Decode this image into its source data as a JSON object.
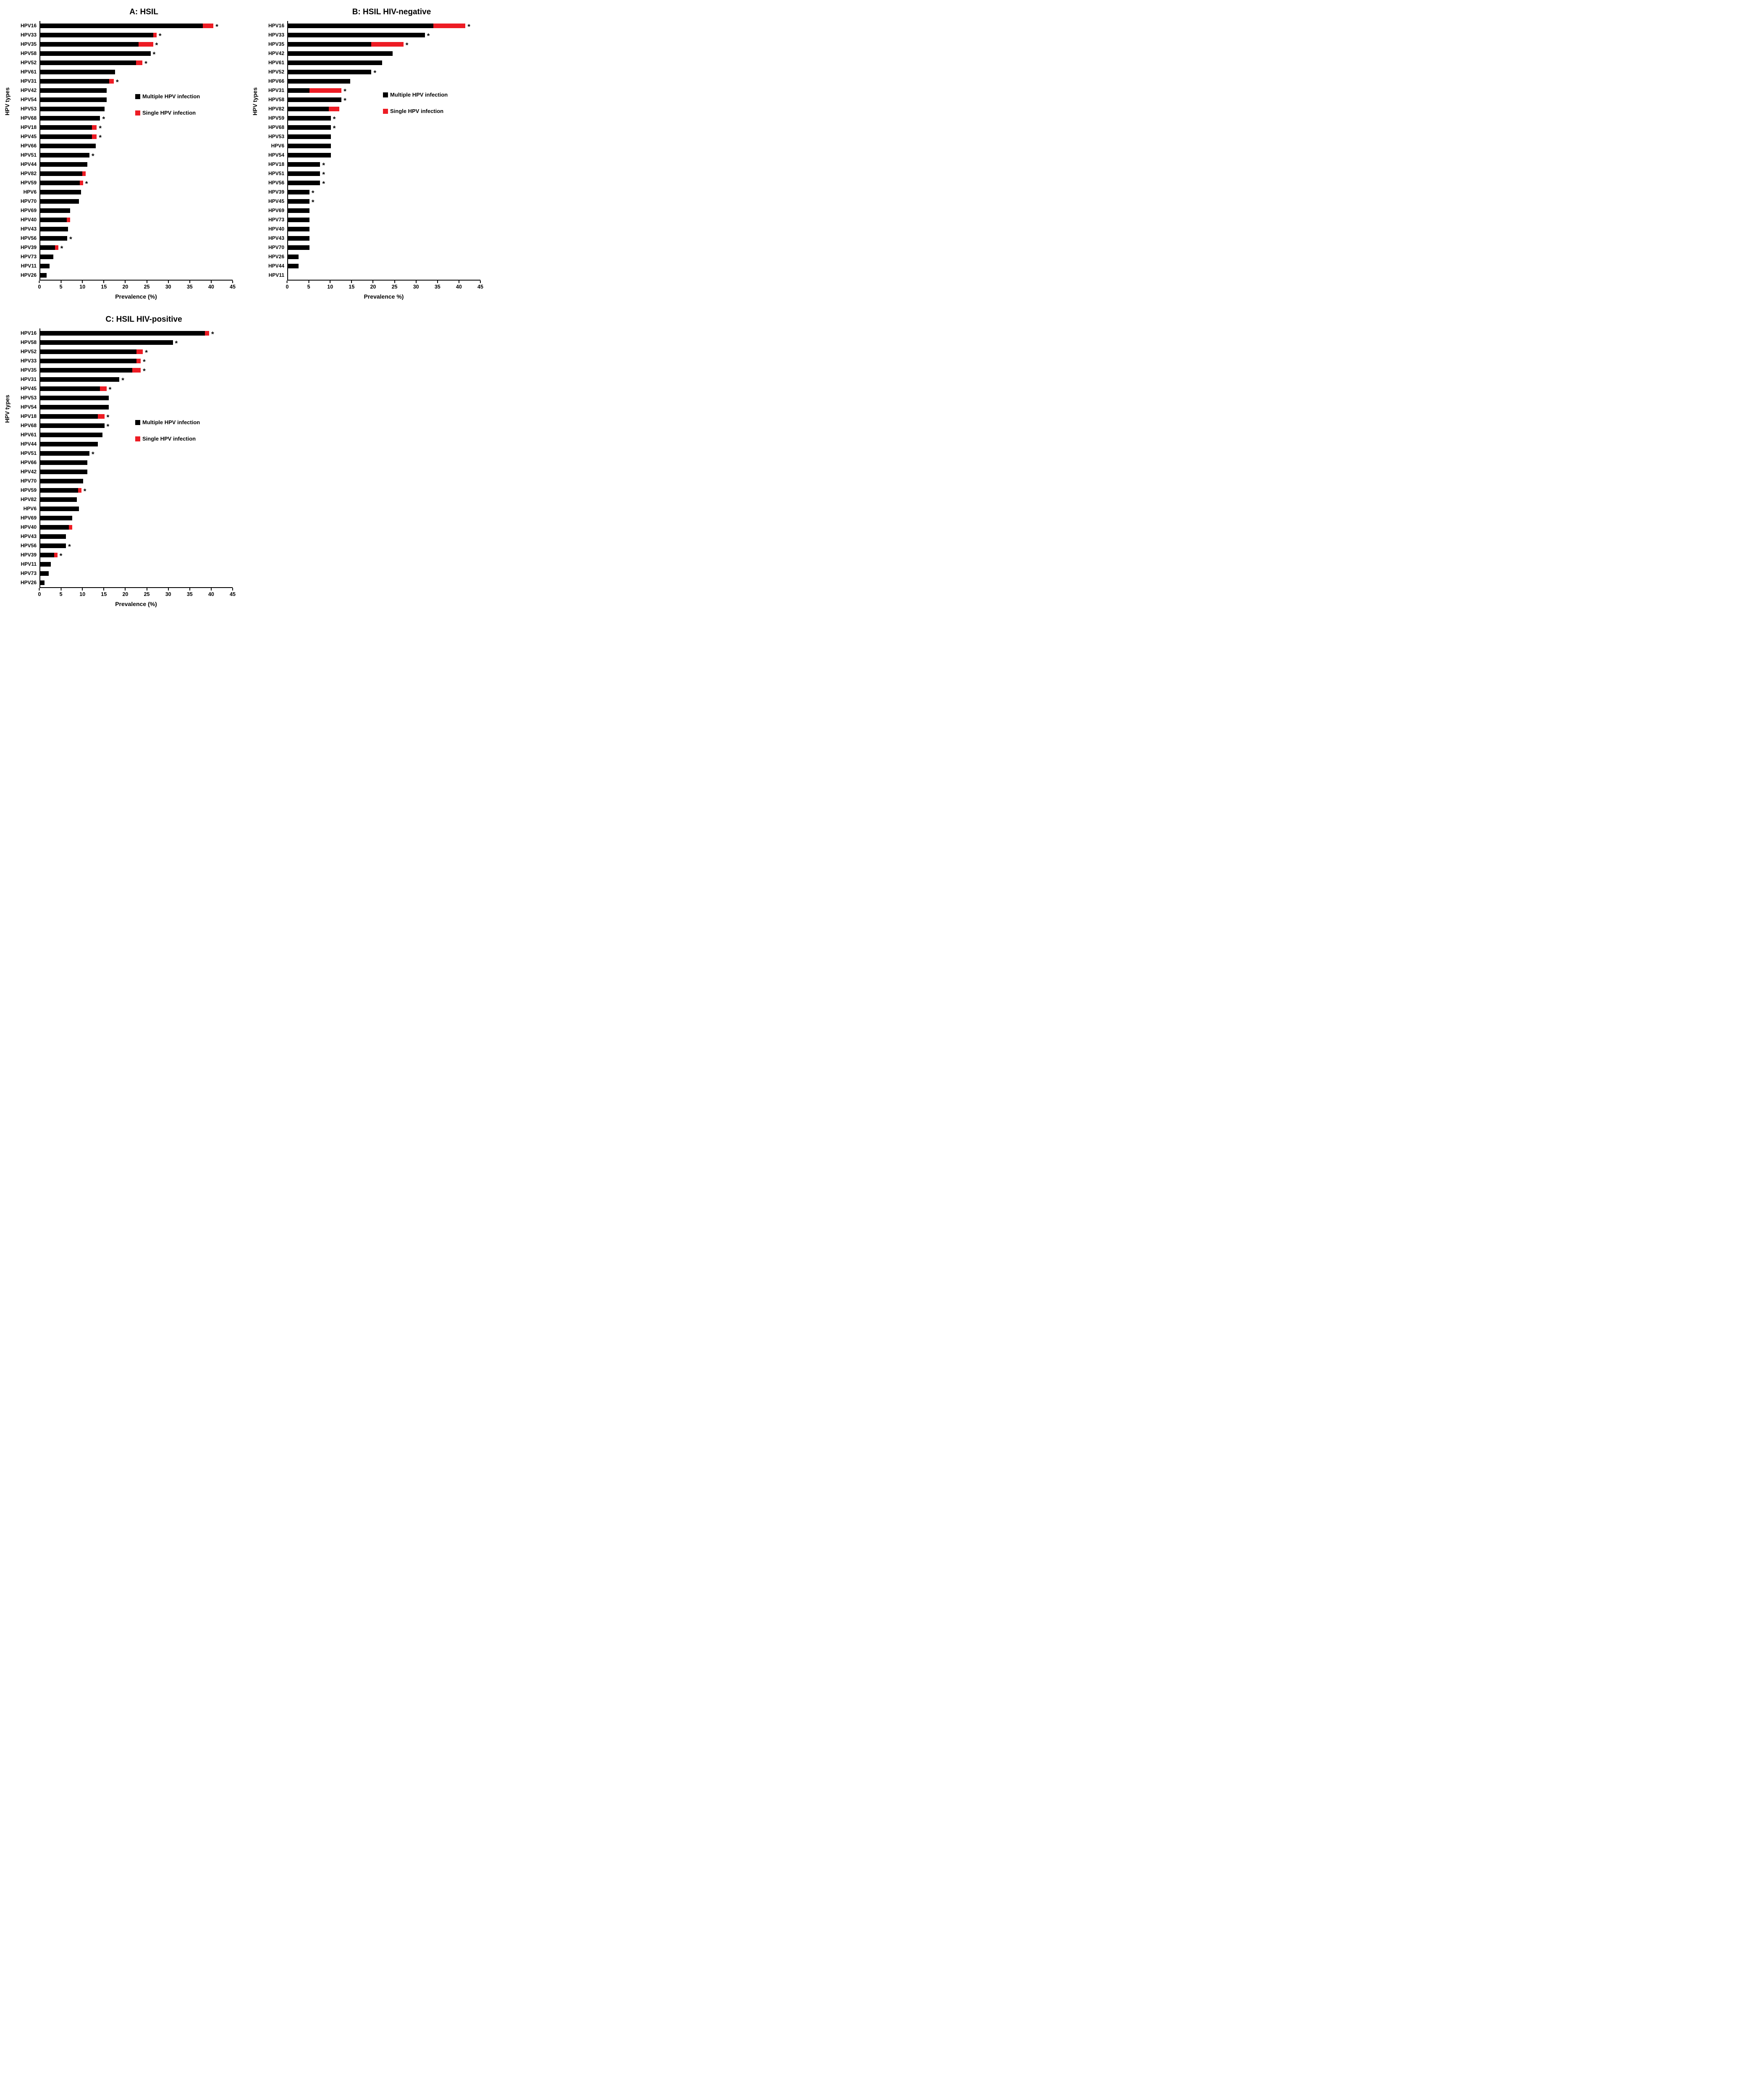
{
  "colors": {
    "multiple": "#000000",
    "single": "#ed1c24",
    "axis": "#000000"
  },
  "significance_marker": "*",
  "legend": {
    "multiple_label": "Multiple HPV infection",
    "single_label": "Single HPV infection"
  },
  "chart_data": [
    {
      "type": "bar",
      "orientation": "horizontal",
      "title": "A: HSIL",
      "xlabel": "Prevalence (%)",
      "ylabel": "HPV types",
      "xlim": [
        0,
        45
      ],
      "xticks": [
        0,
        5,
        10,
        15,
        20,
        25,
        30,
        35,
        40,
        45
      ],
      "series": [
        "Multiple HPV infection",
        "Single HPV infection"
      ],
      "bars": [
        {
          "label": "HPV16",
          "multiple": 38.0,
          "single": 2.5,
          "star": true
        },
        {
          "label": "HPV33",
          "multiple": 26.4,
          "single": 0.8,
          "star": true
        },
        {
          "label": "HPV35",
          "multiple": 23.0,
          "single": 3.4,
          "star": true
        },
        {
          "label": "HPV58",
          "multiple": 25.8,
          "single": 0,
          "star": true
        },
        {
          "label": "HPV52",
          "multiple": 22.4,
          "single": 1.5,
          "star": true
        },
        {
          "label": "HPV61",
          "multiple": 17.5,
          "single": 0,
          "star": false
        },
        {
          "label": "HPV31",
          "multiple": 16.1,
          "single": 1.1,
          "star": true
        },
        {
          "label": "HPV42",
          "multiple": 15.5,
          "single": 0,
          "star": false
        },
        {
          "label": "HPV54",
          "multiple": 15.5,
          "single": 0,
          "star": false
        },
        {
          "label": "HPV53",
          "multiple": 15.0,
          "single": 0,
          "star": false
        },
        {
          "label": "HPV68",
          "multiple": 14.0,
          "single": 0,
          "star": true
        },
        {
          "label": "HPV18",
          "multiple": 12.1,
          "single": 1.1,
          "star": true
        },
        {
          "label": "HPV45",
          "multiple": 12.1,
          "single": 1.1,
          "star": true
        },
        {
          "label": "HPV66",
          "multiple": 13.0,
          "single": 0,
          "star": false
        },
        {
          "label": "HPV51",
          "multiple": 11.5,
          "single": 0,
          "star": true
        },
        {
          "label": "HPV44",
          "multiple": 11.0,
          "single": 0,
          "star": false
        },
        {
          "label": "HPV82",
          "multiple": 9.8,
          "single": 0.8,
          "star": false
        },
        {
          "label": "HPV59",
          "multiple": 9.2,
          "single": 0.8,
          "star": true
        },
        {
          "label": "HPV6",
          "multiple": 9.5,
          "single": 0,
          "star": false
        },
        {
          "label": "HPV70",
          "multiple": 9.0,
          "single": 0,
          "star": false
        },
        {
          "label": "HPV69",
          "multiple": 7.0,
          "single": 0,
          "star": false
        },
        {
          "label": "HPV40",
          "multiple": 6.2,
          "single": 0.8,
          "star": false
        },
        {
          "label": "HPV43",
          "multiple": 6.5,
          "single": 0,
          "star": false
        },
        {
          "label": "HPV56",
          "multiple": 6.3,
          "single": 0,
          "star": true
        },
        {
          "label": "HPV39",
          "multiple": 3.4,
          "single": 0.8,
          "star": true
        },
        {
          "label": "HPV73",
          "multiple": 3.0,
          "single": 0,
          "star": false
        },
        {
          "label": "HPV11",
          "multiple": 2.2,
          "single": 0,
          "star": false
        },
        {
          "label": "HPV26",
          "multiple": 1.5,
          "single": 0,
          "star": false
        }
      ]
    },
    {
      "type": "bar",
      "orientation": "horizontal",
      "title": "B: HSIL HIV-negative",
      "xlabel": "Prevalence %)",
      "ylabel": "HPV types",
      "xlim": [
        0,
        45
      ],
      "xticks": [
        0,
        5,
        10,
        15,
        20,
        25,
        30,
        35,
        40,
        45
      ],
      "series": [
        "Multiple HPV infection",
        "Single HPV infection"
      ],
      "bars": [
        {
          "label": "HPV16",
          "multiple": 34.0,
          "single": 7.5,
          "star": true
        },
        {
          "label": "HPV33",
          "multiple": 32.0,
          "single": 0,
          "star": true
        },
        {
          "label": "HPV35",
          "multiple": 19.5,
          "single": 7.5,
          "star": true
        },
        {
          "label": "HPV42",
          "multiple": 24.5,
          "single": 0,
          "star": false
        },
        {
          "label": "HPV61",
          "multiple": 22.0,
          "single": 0,
          "star": false
        },
        {
          "label": "HPV52",
          "multiple": 19.5,
          "single": 0,
          "star": true
        },
        {
          "label": "HPV66",
          "multiple": 14.5,
          "single": 0,
          "star": false
        },
        {
          "label": "HPV31",
          "multiple": 5.0,
          "single": 7.5,
          "star": true
        },
        {
          "label": "HPV58",
          "multiple": 12.5,
          "single": 0,
          "star": true
        },
        {
          "label": "HPV82",
          "multiple": 9.5,
          "single": 2.5,
          "star": false
        },
        {
          "label": "HPV59",
          "multiple": 10.0,
          "single": 0,
          "star": true
        },
        {
          "label": "HPV68",
          "multiple": 10.0,
          "single": 0,
          "star": true
        },
        {
          "label": "HPV53",
          "multiple": 10.0,
          "single": 0,
          "star": false
        },
        {
          "label": "HPV6",
          "multiple": 10.0,
          "single": 0,
          "star": false
        },
        {
          "label": "HPV54",
          "multiple": 10.0,
          "single": 0,
          "star": false
        },
        {
          "label": "HPV18",
          "multiple": 7.5,
          "single": 0,
          "star": true
        },
        {
          "label": "HPV51",
          "multiple": 7.5,
          "single": 0,
          "star": true
        },
        {
          "label": "HPV56",
          "multiple": 7.5,
          "single": 0,
          "star": true
        },
        {
          "label": "HPV39",
          "multiple": 5.0,
          "single": 0,
          "star": true
        },
        {
          "label": "HPV45",
          "multiple": 5.0,
          "single": 0,
          "star": true
        },
        {
          "label": "HPV69",
          "multiple": 5.0,
          "single": 0,
          "star": false
        },
        {
          "label": "HPV73",
          "multiple": 5.0,
          "single": 0,
          "star": false
        },
        {
          "label": "HPV40",
          "multiple": 5.0,
          "single": 0,
          "star": false
        },
        {
          "label": "HPV43",
          "multiple": 5.0,
          "single": 0,
          "star": false
        },
        {
          "label": "HPV70",
          "multiple": 5.0,
          "single": 0,
          "star": false
        },
        {
          "label": "HPV26",
          "multiple": 2.5,
          "single": 0,
          "star": false
        },
        {
          "label": "HPV44",
          "multiple": 2.5,
          "single": 0,
          "star": false
        },
        {
          "label": "HPV11",
          "multiple": 0,
          "single": 0,
          "star": false
        }
      ]
    },
    {
      "type": "bar",
      "orientation": "horizontal",
      "title": "C: HSIL HIV-positive",
      "xlabel": "Prevalence (%)",
      "ylabel": "HPV types",
      "xlim": [
        0,
        45
      ],
      "xticks": [
        0,
        5,
        10,
        15,
        20,
        25,
        30,
        35,
        40,
        45
      ],
      "series": [
        "Multiple HPV infection",
        "Single HPV infection"
      ],
      "bars": [
        {
          "label": "HPV16",
          "multiple": 38.5,
          "single": 1.0,
          "star": true
        },
        {
          "label": "HPV58",
          "multiple": 31.0,
          "single": 0,
          "star": true
        },
        {
          "label": "HPV52",
          "multiple": 22.5,
          "single": 1.5,
          "star": true
        },
        {
          "label": "HPV33",
          "multiple": 22.5,
          "single": 1.0,
          "star": true
        },
        {
          "label": "HPV35",
          "multiple": 21.5,
          "single": 2.0,
          "star": true
        },
        {
          "label": "HPV31",
          "multiple": 18.5,
          "single": 0,
          "star": true
        },
        {
          "label": "HPV45",
          "multiple": 14.0,
          "single": 1.5,
          "star": true
        },
        {
          "label": "HPV53",
          "multiple": 16.0,
          "single": 0,
          "star": false
        },
        {
          "label": "HPV54",
          "multiple": 16.0,
          "single": 0,
          "star": false
        },
        {
          "label": "HPV18",
          "multiple": 13.5,
          "single": 1.5,
          "star": true
        },
        {
          "label": "HPV68",
          "multiple": 15.0,
          "single": 0,
          "star": true
        },
        {
          "label": "HPV61",
          "multiple": 14.5,
          "single": 0,
          "star": false
        },
        {
          "label": "HPV44",
          "multiple": 13.5,
          "single": 0,
          "star": false
        },
        {
          "label": "HPV51",
          "multiple": 11.5,
          "single": 0,
          "star": true
        },
        {
          "label": "HPV66",
          "multiple": 11.0,
          "single": 0,
          "star": false
        },
        {
          "label": "HPV42",
          "multiple": 11.0,
          "single": 0,
          "star": false
        },
        {
          "label": "HPV70",
          "multiple": 10.0,
          "single": 0,
          "star": false
        },
        {
          "label": "HPV59",
          "multiple": 8.8,
          "single": 0.8,
          "star": true
        },
        {
          "label": "HPV82",
          "multiple": 8.5,
          "single": 0,
          "star": false
        },
        {
          "label": "HPV6",
          "multiple": 9.0,
          "single": 0,
          "star": false
        },
        {
          "label": "HPV69",
          "multiple": 7.5,
          "single": 0,
          "star": false
        },
        {
          "label": "HPV40",
          "multiple": 6.7,
          "single": 0.8,
          "star": false
        },
        {
          "label": "HPV43",
          "multiple": 6.0,
          "single": 0,
          "star": false
        },
        {
          "label": "HPV56",
          "multiple": 6.0,
          "single": 0,
          "star": true
        },
        {
          "label": "HPV39",
          "multiple": 3.2,
          "single": 0.8,
          "star": true
        },
        {
          "label": "HPV11",
          "multiple": 2.5,
          "single": 0,
          "star": false
        },
        {
          "label": "HPV73",
          "multiple": 2.0,
          "single": 0,
          "star": false
        },
        {
          "label": "HPV26",
          "multiple": 1.0,
          "single": 0,
          "star": false
        }
      ]
    }
  ]
}
